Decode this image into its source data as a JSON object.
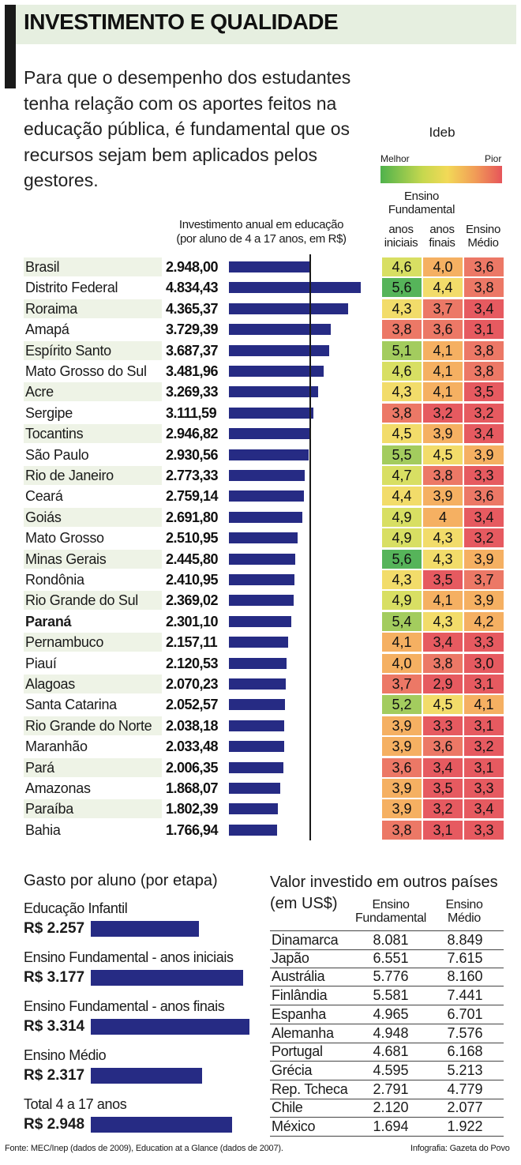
{
  "header": {
    "title": "INVESTIMENTO E QUALIDADE",
    "intro": "Para que o desempenho dos estudantes tenha relação com os aportes feitos na educação pública, é fundamental que os recursos sejam bem aplicados pelos gestores."
  },
  "ideb": {
    "title": "Ideb",
    "best": "Melhor",
    "worst": "Pior",
    "fund_header": "Ensino Fundamental",
    "col_ini": "anos iniciais",
    "col_fin": "anos finais",
    "col_med": "Ensino Médio",
    "colors": {
      "5.6": "#56b45a",
      "5.0": "#a3cc5e",
      "4.6": "#d8df63",
      "4.3": "#f2dc6a",
      "3.9": "#f5b062",
      "3.6": "#ec7866",
      "3.3": "#e65a60"
    }
  },
  "chart_data": {
    "type": "bar",
    "title": "Investimento anual em educação (por aluno de 4 a 17 anos, em R$)",
    "xlim": [
      0,
      4834.43
    ],
    "reference_line": 2948.0,
    "highlight": "Paraná",
    "rows": [
      {
        "state": "Brasil",
        "label": "2.948,00",
        "value": 2948.0,
        "ini": "4,6",
        "fin": "4,0",
        "med": "3,6"
      },
      {
        "state": "Distrito Federal",
        "label": "4.834,43",
        "value": 4834.43,
        "ini": "5,6",
        "fin": "4,4",
        "med": "3,8"
      },
      {
        "state": "Roraima",
        "label": "4.365,37",
        "value": 4365.37,
        "ini": "4,3",
        "fin": "3,7",
        "med": "3,4"
      },
      {
        "state": "Amapá",
        "label": "3.729,39",
        "value": 3729.39,
        "ini": "3,8",
        "fin": "3,6",
        "med": "3,1"
      },
      {
        "state": "Espírito Santo",
        "label": "3.687,37",
        "value": 3687.37,
        "ini": "5,1",
        "fin": "4,1",
        "med": "3,8"
      },
      {
        "state": "Mato Grosso do Sul",
        "label": "3.481,96",
        "value": 3481.96,
        "ini": "4,6",
        "fin": "4,1",
        "med": "3,8"
      },
      {
        "state": "Acre",
        "label": "3.269,33",
        "value": 3269.33,
        "ini": "4,3",
        "fin": "4,1",
        "med": "3,5"
      },
      {
        "state": "Sergipe",
        "label": "3.111,59",
        "value": 3111.59,
        "ini": "3,8",
        "fin": "3,2",
        "med": "3,2"
      },
      {
        "state": "Tocantins",
        "label": "2.946,82",
        "value": 2946.82,
        "ini": "4,5",
        "fin": "3,9",
        "med": "3,4"
      },
      {
        "state": "São Paulo",
        "label": "2.930,56",
        "value": 2930.56,
        "ini": "5,5",
        "fin": "4,5",
        "med": "3,9"
      },
      {
        "state": "Rio de Janeiro",
        "label": "2.773,33",
        "value": 2773.33,
        "ini": "4,7",
        "fin": "3,8",
        "med": "3,3"
      },
      {
        "state": "Ceará",
        "label": "2.759,14",
        "value": 2759.14,
        "ini": "4,4",
        "fin": "3,9",
        "med": "3,6"
      },
      {
        "state": "Goiás",
        "label": "2.691,80",
        "value": 2691.8,
        "ini": "4,9",
        "fin": "4",
        "med": "3,4"
      },
      {
        "state": "Mato Grosso",
        "label": "2.510,95",
        "value": 2510.95,
        "ini": "4,9",
        "fin": "4,3",
        "med": "3,2"
      },
      {
        "state": "Minas Gerais",
        "label": "2.445,80",
        "value": 2445.8,
        "ini": "5,6",
        "fin": "4,3",
        "med": "3,9"
      },
      {
        "state": "Rondônia",
        "label": "2.410,95",
        "value": 2410.95,
        "ini": "4,3",
        "fin": "3,5",
        "med": "3,7"
      },
      {
        "state": "Rio Grande do Sul",
        "label": "2.369,02",
        "value": 2369.02,
        "ini": "4,9",
        "fin": "4,1",
        "med": "3,9"
      },
      {
        "state": "Paraná",
        "label": "2.301,10",
        "value": 2301.1,
        "ini": "5,4",
        "fin": "4,3",
        "med": "4,2"
      },
      {
        "state": "Pernambuco",
        "label": "2.157,11",
        "value": 2157.11,
        "ini": "4,1",
        "fin": "3,4",
        "med": "3,3"
      },
      {
        "state": "Piauí",
        "label": "2.120,53",
        "value": 2120.53,
        "ini": "4,0",
        "fin": "3,8",
        "med": "3,0"
      },
      {
        "state": "Alagoas",
        "label": "2.070,23",
        "value": 2070.23,
        "ini": "3,7",
        "fin": "2,9",
        "med": "3,1"
      },
      {
        "state": "Santa Catarina",
        "label": "2.052,57",
        "value": 2052.57,
        "ini": "5,2",
        "fin": "4,5",
        "med": "4,1"
      },
      {
        "state": "Rio Grande do Norte",
        "label": "2.038,18",
        "value": 2038.18,
        "ini": "3,9",
        "fin": "3,3",
        "med": "3,1"
      },
      {
        "state": "Maranhão",
        "label": "2.033,48",
        "value": 2033.48,
        "ini": "3,9",
        "fin": "3,6",
        "med": "3,2"
      },
      {
        "state": "Pará",
        "label": "2.006,35",
        "value": 2006.35,
        "ini": "3,6",
        "fin": "3,4",
        "med": "3,1"
      },
      {
        "state": "Amazonas",
        "label": "1.868,07",
        "value": 1868.07,
        "ini": "3,9",
        "fin": "3,5",
        "med": "3,3"
      },
      {
        "state": "Paraíba",
        "label": "1.802,39",
        "value": 1802.39,
        "ini": "3,9",
        "fin": "3,2",
        "med": "3,4"
      },
      {
        "state": "Bahia",
        "label": "1.766,94",
        "value": 1766.94,
        "ini": "3,8",
        "fin": "3,1",
        "med": "3,3"
      }
    ]
  },
  "gasto": {
    "title": "Gasto por aluno (por etapa)",
    "max": 3314,
    "items": [
      {
        "label": "Educação Infantil",
        "value_label": "R$ 2.257",
        "value": 2257
      },
      {
        "label": "Ensino Fundamental - anos iniciais",
        "value_label": "R$ 3.177",
        "value": 3177
      },
      {
        "label": "Ensino Fundamental - anos finais",
        "value_label": "R$ 3.314",
        "value": 3314
      },
      {
        "label": "Ensino Médio",
        "value_label": "R$ 2.317",
        "value": 2317
      },
      {
        "label": "Total 4 a 17 anos",
        "value_label": "R$ 2.948",
        "value": 2948
      }
    ]
  },
  "paises": {
    "title": "Valor investido em outros países (em US$)",
    "col_ef": "Ensino Fundamental",
    "col_em": "Ensino Médio",
    "rows": [
      {
        "country": "Dinamarca",
        "ef": "8.081",
        "em": "8.849"
      },
      {
        "country": "Japão",
        "ef": "6.551",
        "em": "7.615"
      },
      {
        "country": "Austrália",
        "ef": "5.776",
        "em": "8.160"
      },
      {
        "country": "Finlândia",
        "ef": "5.581",
        "em": "7.441"
      },
      {
        "country": "Espanha",
        "ef": "4.965",
        "em": "6.701"
      },
      {
        "country": "Alemanha",
        "ef": "4.948",
        "em": "7.576"
      },
      {
        "country": "Portugal",
        "ef": "4.681",
        "em": "6.168"
      },
      {
        "country": "Grécia",
        "ef": "4.595",
        "em": "5.213"
      },
      {
        "country": "Rep. Tcheca",
        "ef": "2.791",
        "em": "4.779"
      },
      {
        "country": "Chile",
        "ef": "2.120",
        "em": "2.077"
      },
      {
        "country": "México",
        "ef": "1.694",
        "em": "1.922"
      }
    ]
  },
  "footer": {
    "source": "Fonte: MEC/Inep (dados de 2009), Education at a Glance (dados de 2007).",
    "credit": "Infografia: Gazeta do Povo"
  }
}
